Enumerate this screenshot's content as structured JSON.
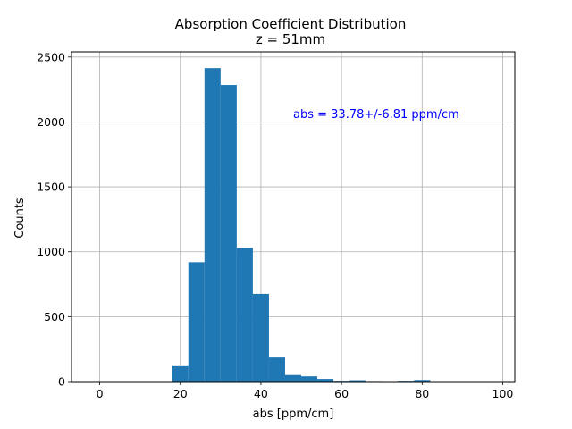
{
  "chart_data": {
    "type": "bar",
    "title": "Absorption Coefficient Distribution",
    "subtitle": "z = 51mm",
    "xlabel": "abs [ppm/cm]",
    "ylabel": "Counts",
    "xlim": [
      -7,
      103
    ],
    "ylim": [
      0,
      2540
    ],
    "xticks": [
      0,
      20,
      40,
      60,
      80,
      100
    ],
    "yticks": [
      0,
      500,
      1000,
      1500,
      2000,
      2500
    ],
    "grid": true,
    "bar_color": "#1f77b4",
    "annotation": {
      "text": "abs = 33.78+/-6.81 ppm/cm",
      "x": 48,
      "y": 2030,
      "color": "#0000ff"
    },
    "bins": [
      {
        "x0": 18,
        "x1": 22,
        "value": 125
      },
      {
        "x0": 22,
        "x1": 26,
        "value": 920
      },
      {
        "x0": 26,
        "x1": 30,
        "value": 2415
      },
      {
        "x0": 30,
        "x1": 34,
        "value": 2285
      },
      {
        "x0": 34,
        "x1": 38,
        "value": 1030
      },
      {
        "x0": 38,
        "x1": 42,
        "value": 675
      },
      {
        "x0": 42,
        "x1": 46,
        "value": 185
      },
      {
        "x0": 46,
        "x1": 50,
        "value": 50
      },
      {
        "x0": 50,
        "x1": 54,
        "value": 40
      },
      {
        "x0": 54,
        "x1": 58,
        "value": 20
      },
      {
        "x0": 58,
        "x1": 62,
        "value": 6
      },
      {
        "x0": 62,
        "x1": 66,
        "value": 10
      },
      {
        "x0": 66,
        "x1": 70,
        "value": 4
      },
      {
        "x0": 70,
        "x1": 74,
        "value": 3
      },
      {
        "x0": 74,
        "x1": 78,
        "value": 6
      },
      {
        "x0": 78,
        "x1": 82,
        "value": 12
      },
      {
        "x0": 82,
        "x1": 86,
        "value": 2
      },
      {
        "x0": 86,
        "x1": 90,
        "value": 1
      },
      {
        "x0": 90,
        "x1": 94,
        "value": 1
      },
      {
        "x0": 94,
        "x1": 98,
        "value": 1
      }
    ]
  }
}
